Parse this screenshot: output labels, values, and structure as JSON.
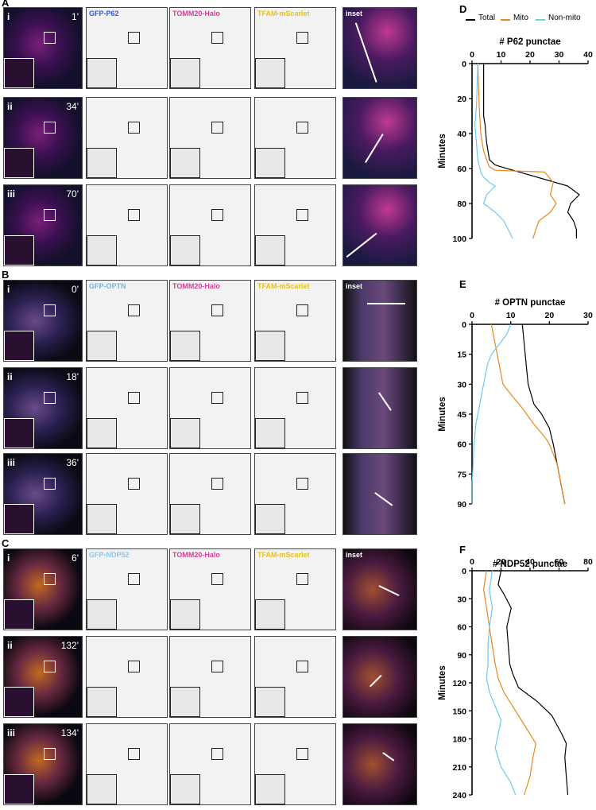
{
  "panels": {
    "A": {
      "letter": "A",
      "channels": [
        "GFP-P62",
        "TOMM20-Halo",
        "TFAM-mScarlet",
        "inset"
      ],
      "channel_colors": [
        "#2f5bd6",
        "#d6409a",
        "#e6c21a",
        "#ffffff"
      ],
      "rows": [
        {
          "roman": "i",
          "time": "1'"
        },
        {
          "roman": "ii",
          "time": "34'"
        },
        {
          "roman": "iii",
          "time": "70'"
        }
      ]
    },
    "B": {
      "letter": "B",
      "channels": [
        "GFP-OPTN",
        "TOMM20-Halo",
        "TFAM-mScarlet",
        "inset"
      ],
      "channel_colors": [
        "#6ab8e8",
        "#d6409a",
        "#e6c21a",
        "#ffffff"
      ],
      "rows": [
        {
          "roman": "i",
          "time": "0'"
        },
        {
          "roman": "ii",
          "time": "18'"
        },
        {
          "roman": "iii",
          "time": "36'"
        }
      ]
    },
    "C": {
      "letter": "C",
      "channels": [
        "GFP-NDP52",
        "TOMM20-Halo",
        "TFAM-mScarlet",
        "inset"
      ],
      "channel_colors": [
        "#8cc8ee",
        "#d6409a",
        "#e6c21a",
        "#ffffff"
      ],
      "rows": [
        {
          "roman": "i",
          "time": "6'"
        },
        {
          "roman": "ii",
          "time": "132'"
        },
        {
          "roman": "iii",
          "time": "134'"
        }
      ]
    }
  },
  "legend": {
    "items": [
      {
        "label": "Total",
        "color": "#000000"
      },
      {
        "label": "Mito",
        "color": "#e8891e"
      },
      {
        "label": "Non-mito",
        "color": "#6ccbeb"
      }
    ]
  },
  "chart_data": [
    {
      "letter": "D",
      "type": "line",
      "title": "# P62 punctae",
      "ylabel": "Minutes",
      "xlim": [
        0,
        40
      ],
      "ylim": [
        0,
        100
      ],
      "xticks": [
        0,
        10,
        20,
        30,
        40
      ],
      "yticks": [
        0,
        20,
        40,
        60,
        80,
        100
      ],
      "series": [
        {
          "name": "Total",
          "color": "#000000",
          "points": [
            [
              4,
              0
            ],
            [
              4,
              30
            ],
            [
              4.5,
              35
            ],
            [
              5,
              45
            ],
            [
              6,
              55
            ],
            [
              8,
              58
            ],
            [
              10,
              59
            ],
            [
              33,
              70
            ],
            [
              37,
              75
            ],
            [
              34,
              80
            ],
            [
              33,
              85
            ],
            [
              35,
              90
            ],
            [
              36,
              95
            ],
            [
              36,
              100
            ]
          ]
        },
        {
          "name": "Mito",
          "color": "#e8891e",
          "points": [
            [
              2,
              0
            ],
            [
              2.5,
              25
            ],
            [
              3,
              40
            ],
            [
              4,
              50
            ],
            [
              5,
              55
            ],
            [
              6,
              59
            ],
            [
              8,
              61
            ],
            [
              25,
              62
            ],
            [
              28,
              68
            ],
            [
              27,
              75
            ],
            [
              29,
              80
            ],
            [
              27,
              85
            ],
            [
              23,
              90
            ],
            [
              21,
              100
            ]
          ]
        },
        {
          "name": "Non-mito",
          "color": "#6ccbeb",
          "points": [
            [
              2,
              0
            ],
            [
              1.5,
              25
            ],
            [
              1,
              35
            ],
            [
              1.5,
              45
            ],
            [
              2,
              55
            ],
            [
              3,
              62
            ],
            [
              4,
              65
            ],
            [
              6,
              68
            ],
            [
              8,
              70
            ],
            [
              5,
              75
            ],
            [
              4,
              80
            ],
            [
              8,
              85
            ],
            [
              11,
              90
            ],
            [
              14,
              100
            ]
          ]
        }
      ]
    },
    {
      "letter": "E",
      "type": "line",
      "title": "# OPTN punctae",
      "ylabel": "Minutes",
      "xlim": [
        0,
        30
      ],
      "ylim": [
        0,
        90
      ],
      "xticks": [
        0,
        10,
        20,
        30
      ],
      "yticks": [
        0,
        15,
        30,
        45,
        60,
        75,
        90
      ],
      "series": [
        {
          "name": "Total",
          "color": "#000000",
          "points": [
            [
              13,
              0
            ],
            [
              13.5,
              10
            ],
            [
              14,
              20
            ],
            [
              14.5,
              30
            ],
            [
              16,
              40
            ],
            [
              18,
              45
            ],
            [
              20,
              52
            ],
            [
              21,
              60
            ],
            [
              22,
              70
            ],
            [
              23,
              80
            ],
            [
              24,
              90
            ]
          ]
        },
        {
          "name": "Mito",
          "color": "#e8891e",
          "points": [
            [
              5,
              0
            ],
            [
              6,
              10
            ],
            [
              7,
              20
            ],
            [
              8,
              30
            ],
            [
              10,
              35
            ],
            [
              13,
              42
            ],
            [
              16,
              50
            ],
            [
              19,
              57
            ],
            [
              20,
              60
            ],
            [
              22,
              70
            ],
            [
              23,
              80
            ],
            [
              24,
              90
            ]
          ]
        },
        {
          "name": "Non-mito",
          "color": "#6ccbeb",
          "points": [
            [
              10,
              0
            ],
            [
              9,
              5
            ],
            [
              7,
              10
            ],
            [
              5,
              15
            ],
            [
              4,
              20
            ],
            [
              3,
              30
            ],
            [
              2,
              40
            ],
            [
              1,
              50
            ],
            [
              0.5,
              60
            ],
            [
              0.3,
              70
            ],
            [
              0,
              80
            ],
            [
              0,
              90
            ]
          ]
        }
      ]
    },
    {
      "letter": "F",
      "type": "line",
      "title": "# NDP52 punctae",
      "ylabel": "Minutes",
      "xlim": [
        0,
        80
      ],
      "ylim": [
        0,
        240
      ],
      "xticks": [
        0,
        20,
        40,
        60,
        80
      ],
      "yticks": [
        0,
        30,
        60,
        90,
        120,
        150,
        180,
        210,
        240
      ],
      "series": [
        {
          "name": "Total",
          "color": "#000000",
          "points": [
            [
              20,
              0
            ],
            [
              18,
              15
            ],
            [
              22,
              25
            ],
            [
              27,
              40
            ],
            [
              24,
              60
            ],
            [
              25,
              80
            ],
            [
              26,
              100
            ],
            [
              28,
              110
            ],
            [
              32,
              125
            ],
            [
              45,
              140
            ],
            [
              55,
              155
            ],
            [
              62,
              175
            ],
            [
              65,
              185
            ],
            [
              64,
              200
            ],
            [
              65,
              220
            ],
            [
              66,
              240
            ]
          ]
        },
        {
          "name": "Mito",
          "color": "#e8891e",
          "points": [
            [
              10,
              0
            ],
            [
              8,
              20
            ],
            [
              10,
              40
            ],
            [
              12,
              60
            ],
            [
              14,
              80
            ],
            [
              16,
              100
            ],
            [
              18,
              115
            ],
            [
              22,
              130
            ],
            [
              28,
              145
            ],
            [
              34,
              160
            ],
            [
              40,
              175
            ],
            [
              44,
              185
            ],
            [
              42,
              200
            ],
            [
              40,
              220
            ],
            [
              36,
              240
            ]
          ]
        },
        {
          "name": "Non-mito",
          "color": "#6ccbeb",
          "points": [
            [
              14,
              0
            ],
            [
              12,
              20
            ],
            [
              14,
              40
            ],
            [
              12,
              60
            ],
            [
              11,
              80
            ],
            [
              11,
              100
            ],
            [
              10,
              115
            ],
            [
              12,
              130
            ],
            [
              16,
              145
            ],
            [
              20,
              160
            ],
            [
              18,
              175
            ],
            [
              16,
              190
            ],
            [
              20,
              210
            ],
            [
              26,
              225
            ],
            [
              30,
              240
            ]
          ]
        }
      ]
    }
  ]
}
